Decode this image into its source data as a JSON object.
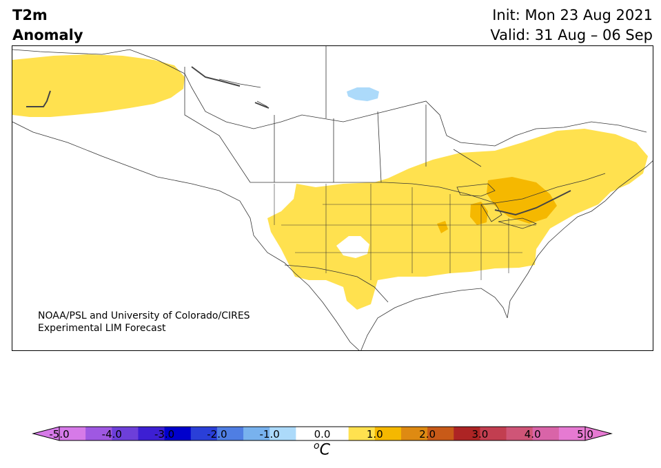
{
  "title": {
    "line1": "T2m",
    "line2": "Anomaly",
    "init": "Init: Mon 23 Aug 2021",
    "valid": "Valid: 31 Aug – 06 Sep"
  },
  "credit": {
    "line1": "NOAA/PSL and University of Colorado/CIRES",
    "line2": "Experimental LIM Forecast"
  },
  "colorbar": {
    "unit_sup": "o",
    "unit_main": "C",
    "ticks": [
      "-5.0",
      "-4.0",
      "-3.0",
      "-2.0",
      "-1.0",
      "0.0",
      "1.0",
      "2.0",
      "3.0",
      "4.0",
      "5.0"
    ],
    "colors": [
      "#d67ae8",
      "#9f58e2",
      "#6d3fd9",
      "#3d1fd3",
      "#0000cc",
      "#2a3fd8",
      "#4f7ee3",
      "#78b2ee",
      "#acdafa",
      "#ffffff",
      "#ffffff",
      "#ffe14f",
      "#f5b800",
      "#de8a12",
      "#c85a18",
      "#ad2424",
      "#c23e50",
      "#cf5577",
      "#d964a8",
      "#e67ad2"
    ],
    "under_color": "#d67ae8",
    "over_color": "#e67ad2"
  },
  "map_colors": {
    "warm_light": "#ffe14f",
    "warm_medium": "#f5b800",
    "cool_light": "#acdafa"
  }
}
